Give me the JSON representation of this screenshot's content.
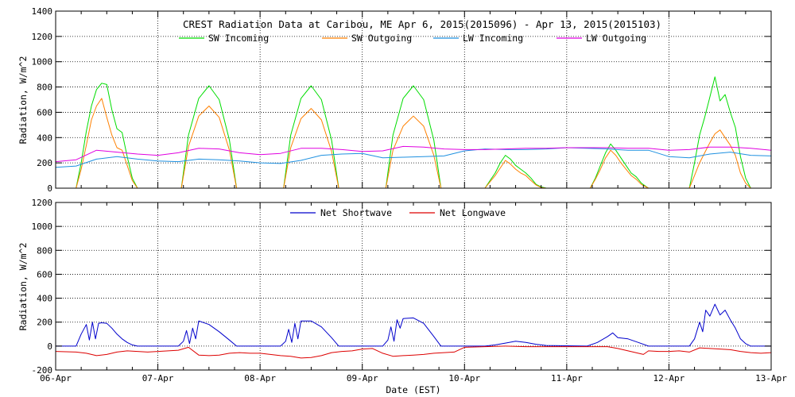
{
  "title": "CREST Radiation Data at Caribou, ME   Apr  6, 2015(2015096) - Apr 13, 2015(2015103)",
  "xlabel": "Date (EST)",
  "x_tick_labels": [
    "06-Apr",
    "07-Apr",
    "08-Apr",
    "09-Apr",
    "10-Apr",
    "11-Apr",
    "12-Apr",
    "13-Apr"
  ],
  "chart_data": [
    {
      "type": "line",
      "ylabel": "Radiation, W/m^2",
      "ylim": [
        0,
        1400
      ],
      "yticks": [
        0,
        200,
        400,
        600,
        800,
        1000,
        1200,
        1400
      ],
      "xlim": [
        0,
        7
      ],
      "grid": true,
      "legend_position": "top",
      "series": [
        {
          "name": "SW Incoming",
          "color": "#00dd00",
          "x": [
            0,
            0.2,
            0.25,
            0.3,
            0.35,
            0.4,
            0.45,
            0.5,
            0.55,
            0.6,
            0.65,
            0.7,
            0.75,
            0.8,
            1.23,
            1.3,
            1.4,
            1.5,
            1.6,
            1.7,
            1.77,
            2.23,
            2.3,
            2.4,
            2.5,
            2.6,
            2.7,
            2.77,
            3.23,
            3.3,
            3.4,
            3.5,
            3.6,
            3.7,
            3.77,
            4.2,
            4.25,
            4.3,
            4.35,
            4.4,
            4.45,
            4.5,
            4.55,
            4.6,
            4.65,
            4.7,
            4.75,
            4.8,
            5.23,
            5.28,
            5.33,
            5.38,
            5.43,
            5.48,
            5.53,
            5.58,
            5.63,
            5.68,
            5.73,
            5.8,
            6.2,
            6.25,
            6.3,
            6.35,
            6.4,
            6.45,
            6.5,
            6.55,
            6.6,
            6.65,
            6.7,
            6.75,
            6.8,
            7
          ],
          "y": [
            0,
            0,
            200,
            450,
            650,
            780,
            830,
            820,
            620,
            470,
            440,
            250,
            80,
            0,
            0,
            420,
            710,
            810,
            700,
            380,
            0,
            0,
            420,
            710,
            810,
            700,
            380,
            0,
            0,
            420,
            710,
            810,
            700,
            380,
            0,
            0,
            60,
            120,
            200,
            260,
            230,
            180,
            150,
            120,
            80,
            30,
            10,
            0,
            0,
            80,
            180,
            280,
            350,
            300,
            240,
            180,
            120,
            90,
            40,
            0,
            0,
            200,
            420,
            560,
            720,
            880,
            690,
            740,
            600,
            480,
            250,
            80,
            0,
            0
          ]
        },
        {
          "name": "SW Outgoing",
          "color": "#ff8000",
          "x": [
            0,
            0.2,
            0.25,
            0.3,
            0.35,
            0.4,
            0.45,
            0.5,
            0.55,
            0.6,
            0.65,
            0.7,
            0.75,
            0.8,
            1.23,
            1.3,
            1.4,
            1.5,
            1.6,
            1.7,
            1.77,
            2.23,
            2.3,
            2.4,
            2.5,
            2.6,
            2.7,
            2.77,
            3.23,
            3.3,
            3.4,
            3.5,
            3.6,
            3.7,
            3.77,
            4.2,
            4.25,
            4.3,
            4.35,
            4.4,
            4.45,
            4.5,
            4.55,
            4.6,
            4.65,
            4.7,
            4.75,
            4.8,
            5.23,
            5.28,
            5.33,
            5.38,
            5.43,
            5.48,
            5.53,
            5.58,
            5.63,
            5.68,
            5.73,
            5.8,
            6.2,
            6.25,
            6.3,
            6.35,
            6.4,
            6.45,
            6.5,
            6.55,
            6.6,
            6.65,
            6.7,
            6.75,
            6.8,
            7
          ],
          "y": [
            0,
            0,
            150,
            340,
            540,
            650,
            710,
            560,
            420,
            320,
            300,
            180,
            60,
            0,
            0,
            330,
            570,
            650,
            560,
            300,
            0,
            0,
            320,
            550,
            630,
            540,
            290,
            0,
            0,
            300,
            490,
            570,
            490,
            260,
            0,
            0,
            50,
            100,
            160,
            220,
            190,
            150,
            120,
            100,
            60,
            25,
            5,
            0,
            0,
            70,
            150,
            240,
            300,
            260,
            200,
            150,
            100,
            70,
            30,
            0,
            0,
            100,
            200,
            280,
            360,
            430,
            460,
            400,
            340,
            260,
            120,
            40,
            0,
            0
          ]
        },
        {
          "name": "LW Incoming",
          "color": "#1e90e0",
          "x": [
            0,
            0.2,
            0.4,
            0.6,
            0.8,
            1.0,
            1.2,
            1.4,
            1.6,
            1.8,
            2.0,
            2.2,
            2.4,
            2.6,
            2.8,
            3.0,
            3.2,
            3.4,
            3.6,
            3.8,
            4.0,
            4.2,
            4.4,
            4.6,
            4.8,
            5.0,
            5.2,
            5.4,
            5.6,
            5.8,
            6.0,
            6.2,
            6.4,
            6.6,
            6.8,
            7.0
          ],
          "y": [
            165,
            175,
            230,
            250,
            230,
            215,
            210,
            230,
            225,
            215,
            200,
            195,
            220,
            260,
            270,
            275,
            240,
            245,
            250,
            255,
            295,
            310,
            305,
            305,
            310,
            320,
            315,
            310,
            300,
            300,
            250,
            240,
            270,
            285,
            260,
            255
          ]
        },
        {
          "name": "LW Outgoing",
          "color": "#e000e0",
          "x": [
            0,
            0.2,
            0.4,
            0.6,
            0.8,
            1.0,
            1.2,
            1.4,
            1.6,
            1.8,
            2.0,
            2.2,
            2.4,
            2.6,
            2.8,
            3.0,
            3.2,
            3.4,
            3.6,
            3.8,
            4.0,
            4.2,
            4.4,
            4.6,
            4.8,
            5.0,
            5.2,
            5.4,
            5.6,
            5.8,
            6.0,
            6.2,
            6.4,
            6.6,
            6.8,
            7.0
          ],
          "y": [
            210,
            225,
            300,
            285,
            270,
            260,
            280,
            315,
            310,
            280,
            265,
            275,
            315,
            315,
            305,
            290,
            295,
            330,
            325,
            310,
            305,
            305,
            310,
            315,
            315,
            320,
            320,
            320,
            315,
            315,
            300,
            305,
            325,
            325,
            315,
            300
          ]
        }
      ]
    },
    {
      "type": "line",
      "ylabel": "Radiation, W/m^2",
      "ylim": [
        -200,
        1200
      ],
      "yticks": [
        -200,
        0,
        200,
        400,
        600,
        800,
        1000,
        1200
      ],
      "xlim": [
        0,
        7
      ],
      "grid": true,
      "legend_position": "top",
      "series": [
        {
          "name": "Net Shortwave",
          "color": "#0000cc",
          "x": [
            0,
            0.2,
            0.25,
            0.3,
            0.33,
            0.36,
            0.39,
            0.42,
            0.45,
            0.5,
            0.55,
            0.6,
            0.65,
            0.7,
            0.75,
            0.8,
            1.2,
            1.25,
            1.28,
            1.31,
            1.34,
            1.37,
            1.4,
            1.5,
            1.6,
            1.7,
            1.77,
            2.2,
            2.25,
            2.28,
            2.31,
            2.34,
            2.37,
            2.4,
            2.5,
            2.6,
            2.7,
            2.77,
            3.2,
            3.25,
            3.28,
            3.31,
            3.34,
            3.37,
            3.4,
            3.5,
            3.6,
            3.7,
            3.77,
            4.2,
            4.3,
            4.4,
            4.5,
            4.6,
            4.7,
            4.8,
            5.2,
            5.3,
            5.4,
            5.45,
            5.5,
            5.6,
            5.7,
            5.8,
            6.2,
            6.25,
            6.3,
            6.33,
            6.36,
            6.4,
            6.45,
            6.5,
            6.55,
            6.6,
            6.65,
            6.7,
            6.75,
            6.8,
            7
          ],
          "y": [
            0,
            0,
            100,
            180,
            50,
            200,
            60,
            190,
            195,
            190,
            150,
            100,
            60,
            30,
            10,
            0,
            0,
            40,
            130,
            20,
            150,
            60,
            210,
            180,
            120,
            50,
            0,
            0,
            40,
            140,
            30,
            190,
            60,
            210,
            210,
            160,
            70,
            0,
            0,
            50,
            160,
            40,
            220,
            150,
            230,
            235,
            190,
            80,
            0,
            0,
            10,
            25,
            40,
            30,
            15,
            5,
            0,
            30,
            80,
            110,
            70,
            60,
            30,
            0,
            0,
            60,
            200,
            120,
            300,
            250,
            350,
            260,
            300,
            220,
            150,
            60,
            20,
            0,
            0
          ]
        },
        {
          "name": "Net Longwave",
          "color": "#dd0000",
          "x": [
            0,
            0.2,
            0.3,
            0.4,
            0.5,
            0.6,
            0.7,
            0.8,
            0.9,
            1.0,
            1.1,
            1.2,
            1.3,
            1.4,
            1.5,
            1.6,
            1.7,
            1.8,
            1.9,
            2.0,
            2.1,
            2.2,
            2.3,
            2.4,
            2.5,
            2.6,
            2.7,
            2.8,
            2.9,
            3.0,
            3.1,
            3.2,
            3.3,
            3.4,
            3.5,
            3.6,
            3.7,
            3.8,
            3.9,
            4.0,
            4.2,
            4.4,
            4.6,
            4.8,
            5.0,
            5.2,
            5.4,
            5.5,
            5.6,
            5.7,
            5.75,
            5.8,
            5.9,
            6.0,
            6.1,
            6.2,
            6.3,
            6.4,
            6.5,
            6.6,
            6.7,
            6.8,
            6.9,
            7.0
          ],
          "y": [
            -45,
            -50,
            -60,
            -80,
            -70,
            -50,
            -40,
            -45,
            -50,
            -45,
            -40,
            -35,
            -10,
            -75,
            -80,
            -75,
            -60,
            -55,
            -60,
            -60,
            -70,
            -80,
            -85,
            -100,
            -95,
            -80,
            -55,
            -45,
            -40,
            -25,
            -20,
            -60,
            -85,
            -80,
            -75,
            -70,
            -60,
            -55,
            -50,
            -10,
            -5,
            0,
            -5,
            -5,
            -5,
            -5,
            -5,
            -20,
            -40,
            -60,
            -70,
            -40,
            -45,
            -45,
            -40,
            -50,
            -15,
            -20,
            -25,
            -30,
            -45,
            -55,
            -60,
            -55
          ]
        }
      ]
    }
  ]
}
